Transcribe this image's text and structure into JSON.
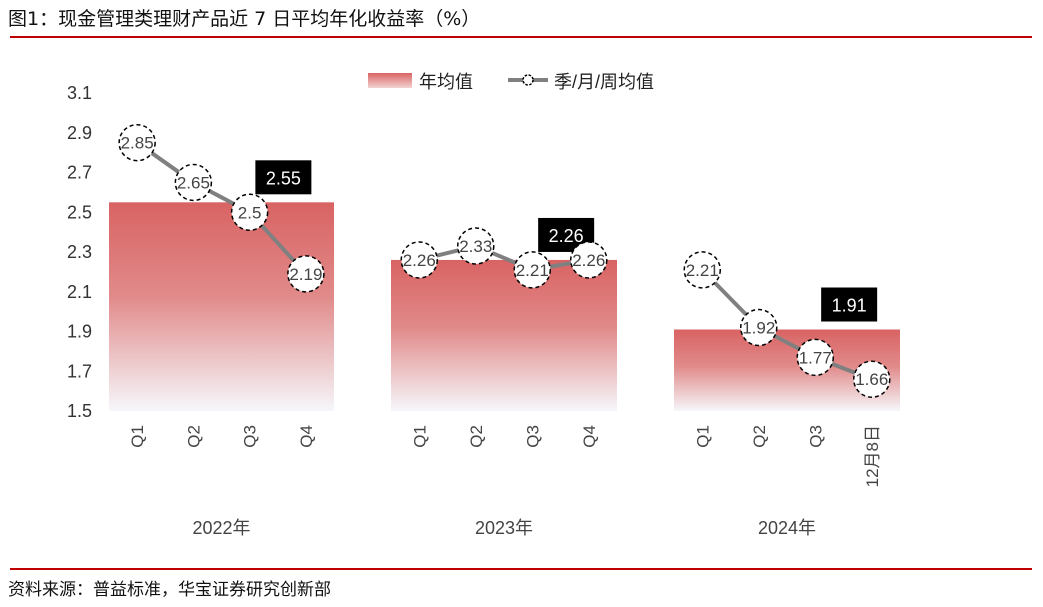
{
  "header": {
    "title": "图1：现金管理类理财产品近 7 日平均年化收益率（%）"
  },
  "footer": {
    "source": "资料来源：普益标准，华宝证券研究创新部"
  },
  "colors": {
    "rule": "#c00000",
    "bar_top": "#d96363",
    "bar_bottom": "#f6f7fb",
    "line": "#808080",
    "label_box": "#000000"
  },
  "chart_data": {
    "type": "bar",
    "legend": [
      "年均值",
      "季/月/周均值"
    ],
    "legend_position": "top",
    "ylim": [
      1.5,
      3.1
    ],
    "yticks": [
      "3.1",
      "2.9",
      "2.7",
      "2.5",
      "2.3",
      "2.1",
      "1.9",
      "1.7",
      "1.5"
    ],
    "grid": false,
    "groups": [
      {
        "name": "2022年",
        "annual": 2.55,
        "annual_label": "2.55",
        "periods": [
          "Q1",
          "Q2",
          "Q3",
          "Q4"
        ],
        "values": [
          2.85,
          2.65,
          2.5,
          2.19
        ],
        "labels": [
          "2.85",
          "2.65",
          "2.5",
          "2.19"
        ]
      },
      {
        "name": "2023年",
        "annual": 2.26,
        "annual_label": "2.26",
        "periods": [
          "Q1",
          "Q2",
          "Q3",
          "Q4"
        ],
        "values": [
          2.26,
          2.33,
          2.21,
          2.26
        ],
        "labels": [
          "2.26",
          "2.33",
          "2.21",
          "2.26"
        ]
      },
      {
        "name": "2024年",
        "annual": 1.91,
        "annual_label": "1.91",
        "periods": [
          "Q1",
          "Q2",
          "Q3",
          "12月8日"
        ],
        "values": [
          2.21,
          1.92,
          1.77,
          1.66
        ],
        "labels": [
          "2.21",
          "1.92",
          "1.77",
          "1.66"
        ]
      }
    ]
  }
}
